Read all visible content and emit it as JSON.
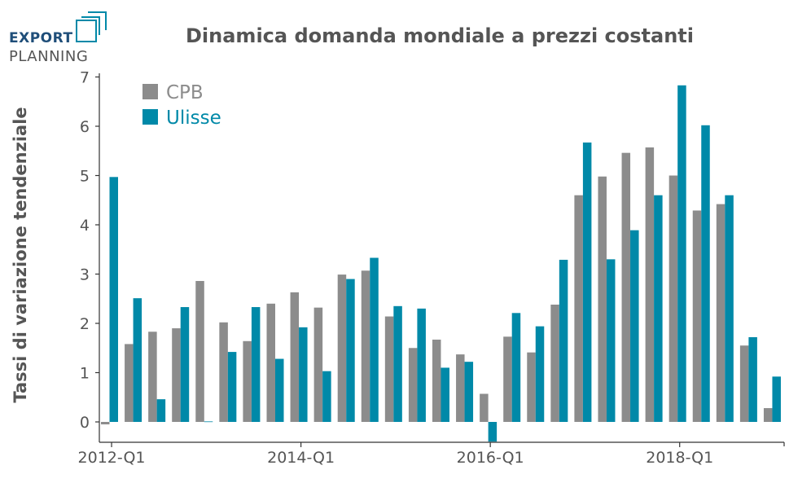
{
  "logo": {
    "line1": "EXPORT",
    "line2": "PLANNING"
  },
  "chart_data": {
    "type": "bar",
    "title": "Dinamica domanda mondiale a prezzi costanti",
    "xlabel": "",
    "ylabel": "Tassi di variazione tendenziale",
    "ylim": [
      -0.4,
      7
    ],
    "yticks": [
      0,
      1,
      2,
      3,
      4,
      5,
      6,
      7
    ],
    "xtick_labels": [
      {
        "index": 0,
        "label": "2012-Q1"
      },
      {
        "index": 8,
        "label": "2014-Q1"
      },
      {
        "index": 16,
        "label": "2016-Q1"
      },
      {
        "index": 24,
        "label": "2018-Q1"
      }
    ],
    "categories": [
      "2012-Q1",
      "2012-Q2",
      "2012-Q3",
      "2012-Q4",
      "2013-Q1",
      "2013-Q2",
      "2013-Q3",
      "2013-Q4",
      "2014-Q1",
      "2014-Q2",
      "2014-Q3",
      "2014-Q4",
      "2015-Q1",
      "2015-Q2",
      "2015-Q3",
      "2015-Q4",
      "2016-Q1",
      "2016-Q2",
      "2016-Q3",
      "2016-Q4",
      "2017-Q1",
      "2017-Q2",
      "2017-Q3",
      "2017-Q4",
      "2018-Q1",
      "2018-Q2",
      "2018-Q3",
      "2018-Q4",
      "2019-Q1"
    ],
    "legend_position": "top-left",
    "grid": false,
    "series": [
      {
        "name": "CPB",
        "color": "#8c8c8c",
        "values": [
          -0.05,
          1.58,
          1.83,
          1.9,
          2.86,
          2.02,
          1.64,
          2.4,
          2.63,
          2.32,
          2.99,
          3.07,
          2.14,
          1.5,
          1.67,
          1.37,
          0.57,
          1.73,
          1.41,
          2.38,
          4.6,
          4.98,
          5.46,
          5.57,
          5.0,
          4.29,
          4.42,
          1.55,
          0.28
        ]
      },
      {
        "name": "Ulisse",
        "color": "#0089a8",
        "values": [
          4.97,
          2.51,
          0.46,
          2.33,
          0.01,
          1.42,
          2.33,
          1.28,
          1.92,
          1.03,
          2.9,
          3.33,
          2.35,
          2.3,
          1.1,
          1.22,
          -0.4,
          2.21,
          1.94,
          3.29,
          5.67,
          3.3,
          3.89,
          4.6,
          6.83,
          6.02,
          4.6,
          1.72,
          0.92
        ]
      }
    ]
  }
}
